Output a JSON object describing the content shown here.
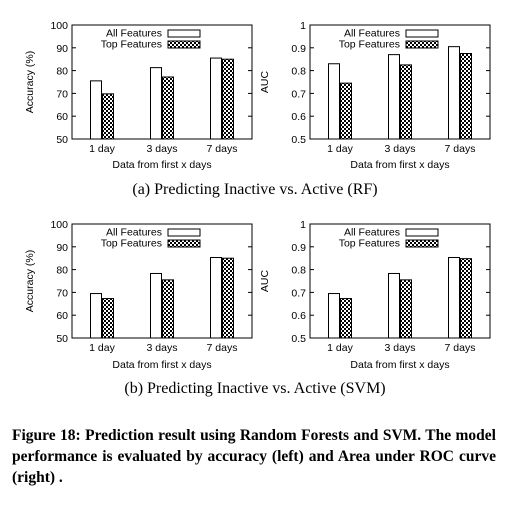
{
  "chart_data": [
    {
      "type": "bar",
      "ylabel": "Accuracy (%)",
      "xlabel": "Data from first x days",
      "categories": [
        "1 day",
        "3 days",
        "7 days"
      ],
      "ylim": [
        50,
        100
      ],
      "yticks": [
        "50",
        "60",
        "70",
        "80",
        "90",
        "100"
      ],
      "series": [
        {
          "name": "All Features",
          "values": [
            75.5,
            81.3,
            85.5
          ]
        },
        {
          "name": "Top Features",
          "values": [
            69.8,
            77.2,
            85.0
          ]
        }
      ]
    },
    {
      "type": "bar",
      "ylabel": "AUC",
      "xlabel": "Data from first x days",
      "categories": [
        "1 day",
        "3 days",
        "7 days"
      ],
      "ylim": [
        0.5,
        1
      ],
      "yticks": [
        "0.5",
        "0.6",
        "0.7",
        "0.8",
        "0.9",
        "1"
      ],
      "series": [
        {
          "name": "All Features",
          "values": [
            0.83,
            0.87,
            0.905
          ]
        },
        {
          "name": "Top Features",
          "values": [
            0.745,
            0.825,
            0.875
          ]
        }
      ]
    },
    {
      "type": "bar",
      "ylabel": "Accuracy (%)",
      "xlabel": "Data from first x days",
      "categories": [
        "1 day",
        "3 days",
        "7 days"
      ],
      "ylim": [
        50,
        100
      ],
      "yticks": [
        "50",
        "60",
        "70",
        "80",
        "90",
        "100"
      ],
      "series": [
        {
          "name": "All Features",
          "values": [
            69.5,
            78.3,
            85.3
          ]
        },
        {
          "name": "Top Features",
          "values": [
            67.3,
            75.5,
            85.0
          ]
        }
      ]
    },
    {
      "type": "bar",
      "ylabel": "AUC",
      "xlabel": "Data from first x days",
      "categories": [
        "1 day",
        "3 days",
        "7 days"
      ],
      "ylim": [
        0.5,
        1
      ],
      "yticks": [
        "0.5",
        "0.6",
        "0.7",
        "0.8",
        "0.9",
        "1"
      ],
      "series": [
        {
          "name": "All Features",
          "values": [
            0.695,
            0.783,
            0.853
          ]
        },
        {
          "name": "Top Features",
          "values": [
            0.673,
            0.755,
            0.848
          ]
        }
      ]
    }
  ],
  "subcaptions": [
    "(a) Predicting Inactive vs. Active (RF)",
    "(b) Predicting Inactive vs. Active (SVM)"
  ],
  "figure_caption": "Figure 18: Prediction result using Random Forests and SVM. The model performance is evaluated by accuracy (left) and Area under ROC curve (right) ."
}
